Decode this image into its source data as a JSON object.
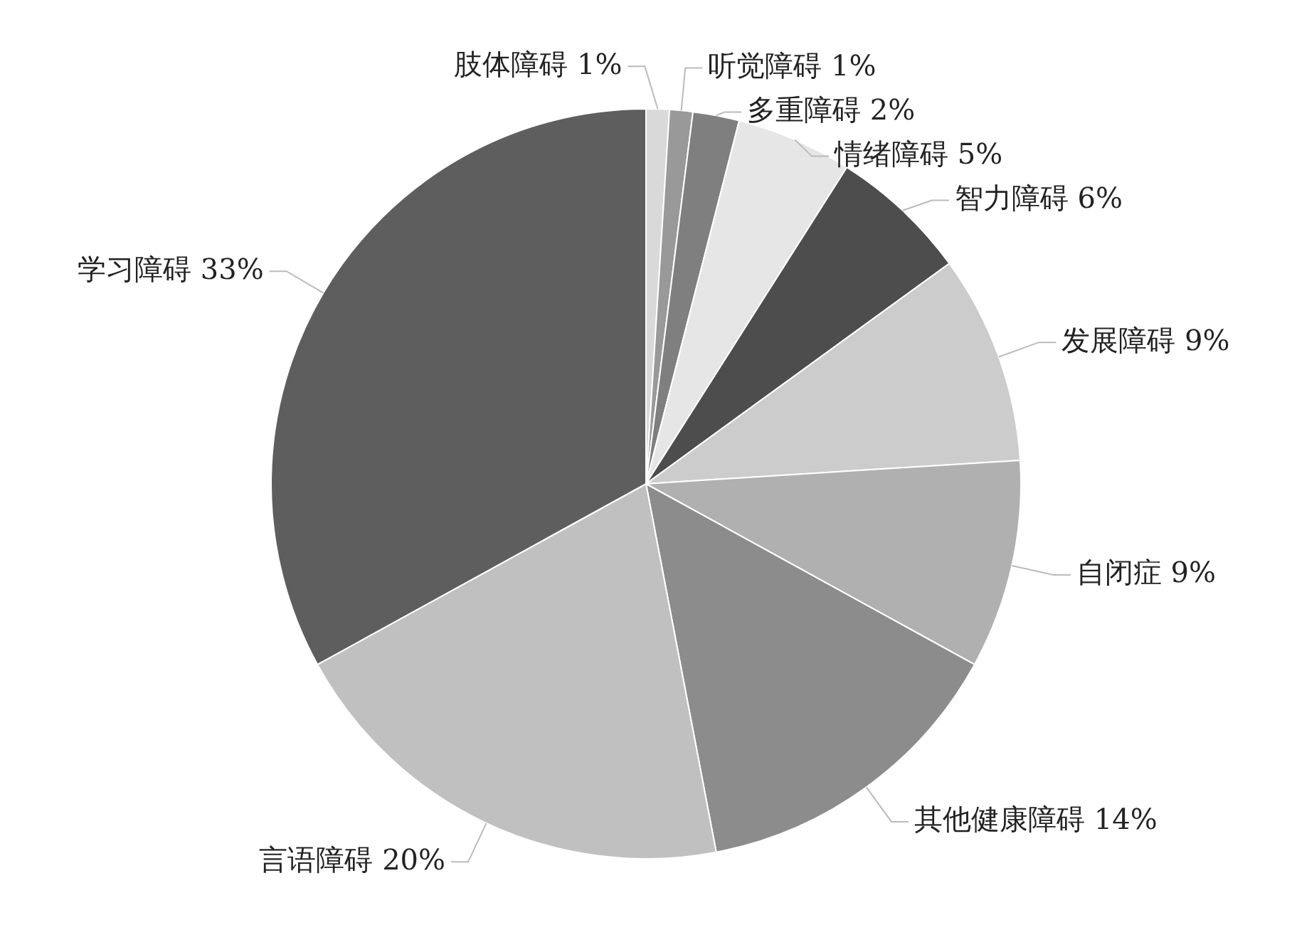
{
  "chart_data": {
    "type": "pie",
    "categories": [
      "肢体障碍",
      "听觉障碍",
      "多重障碍",
      "情绪障碍",
      "智力障碍",
      "发展障碍",
      "自闭症",
      "其他健康障碍",
      "言语障碍",
      "学习障碍"
    ],
    "values": [
      1,
      1,
      2,
      5,
      6,
      9,
      9,
      14,
      20,
      33
    ],
    "value_labels": [
      "1%",
      "1%",
      "2%",
      "5%",
      "6%",
      "9%",
      "9%",
      "14%",
      "20%",
      "33%"
    ],
    "colors": [
      "#d9d9d9",
      "#999999",
      "#7f7f7f",
      "#e6e6e6",
      "#4d4d4d",
      "#cccccc",
      "#b0b0b0",
      "#8c8c8c",
      "#c0c0c0",
      "#5e5e5e"
    ],
    "legend": false
  }
}
